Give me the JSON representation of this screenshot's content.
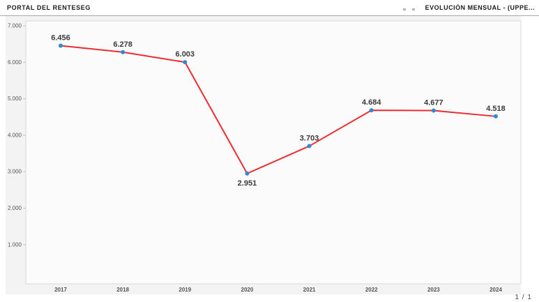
{
  "header": {
    "left_title": "PORTAL DEL RENTESEG",
    "right_title": "EVOLUCIÓN MENSUAL - (UPPE..."
  },
  "pager": {
    "label": "1 / 1"
  },
  "chart_data": {
    "type": "line",
    "title": "EVOLUCIÓN MENSUAL - (UPPE...",
    "categories": [
      "2017",
      "2018",
      "2019",
      "2020",
      "2021",
      "2022",
      "2023",
      "2024"
    ],
    "values": [
      6456,
      6278,
      6003,
      2951,
      3703,
      4684,
      4677,
      4518
    ],
    "point_labels": [
      "6.456",
      "6.278",
      "6.003",
      "2.951",
      "3.703",
      "4.684",
      "4.677",
      "4.518"
    ],
    "label_positions": [
      "above",
      "above",
      "above",
      "below",
      "above",
      "above",
      "above",
      "above"
    ],
    "y_ticks": [
      {
        "value": 7000,
        "label": "7.000"
      },
      {
        "value": 6000,
        "label": "6.000"
      },
      {
        "value": 5000,
        "label": "5.000"
      },
      {
        "value": 4000,
        "label": "4.000"
      },
      {
        "value": 3000,
        "label": "3.000"
      },
      {
        "value": 2000,
        "label": "2.000"
      },
      {
        "value": 1000,
        "label": "1.000"
      }
    ],
    "xlabel": "",
    "ylabel": "",
    "ylim": [
      0,
      7000
    ],
    "grid": false,
    "legend": "none",
    "line_color": "#ee2b31",
    "marker_color": "#3089d3",
    "point_label_color": "#3a3a3a",
    "axis_label_color": "#555555",
    "panel_color": "#f3f3f3",
    "plot_color": "#fbfbfb",
    "axis_line_color": "#d9d9d9"
  }
}
